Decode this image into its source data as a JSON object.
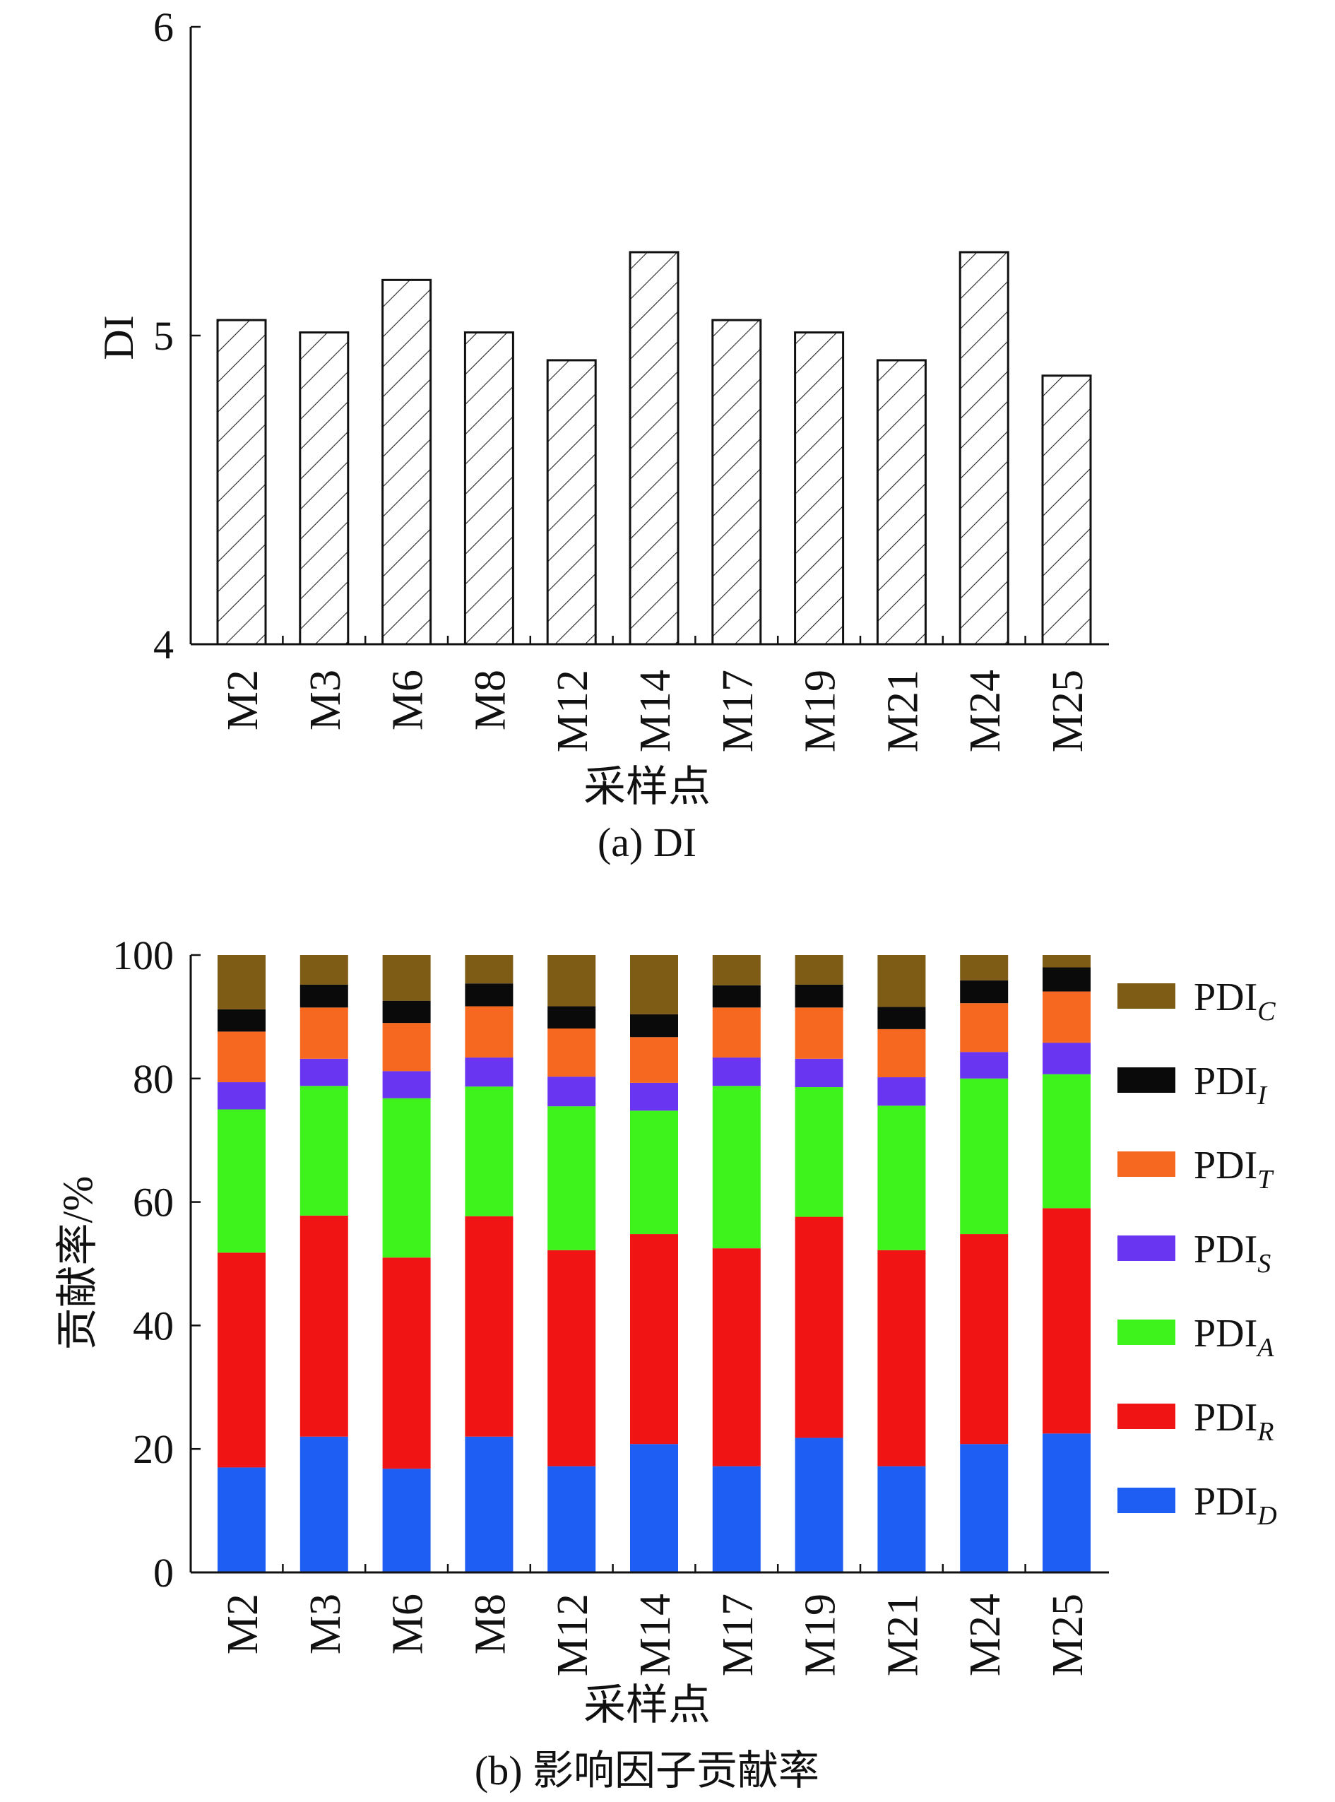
{
  "chart_data": [
    {
      "type": "bar",
      "caption": "(a) DI",
      "xlabel": "采样点",
      "ylabel": "DI",
      "ylim": [
        4,
        6
      ],
      "yticks": [
        4,
        5,
        6
      ],
      "categories": [
        "M2",
        "M3",
        "M6",
        "M8",
        "M12",
        "M14",
        "M17",
        "M19",
        "M21",
        "M24",
        "M25"
      ],
      "values": [
        5.05,
        5.01,
        5.18,
        5.01,
        4.92,
        5.27,
        5.05,
        5.01,
        4.92,
        5.27,
        4.87
      ],
      "fill": "diagonal-hatch",
      "grid": false
    },
    {
      "type": "bar",
      "stacked": true,
      "caption": "(b) 影响因子贡献率",
      "xlabel": "采样点",
      "ylabel": "贡献率/%",
      "ylim": [
        0,
        100
      ],
      "yticks": [
        0,
        20,
        40,
        60,
        80,
        100
      ],
      "categories": [
        "M2",
        "M3",
        "M6",
        "M8",
        "M12",
        "M14",
        "M17",
        "M19",
        "M21",
        "M24",
        "M25"
      ],
      "legend_position": "right",
      "grid": false,
      "series": [
        {
          "name": "PDI",
          "sub": "D",
          "color": "#1f5ef2",
          "values": [
            17,
            22,
            16.8,
            22,
            17.2,
            20.8,
            17.2,
            21.8,
            17.2,
            20.8,
            22.5
          ]
        },
        {
          "name": "PDI",
          "sub": "R",
          "color": "#f01414",
          "values": [
            34.8,
            35.8,
            34.2,
            35.7,
            35,
            34,
            35.3,
            35.8,
            35,
            34,
            36.5
          ]
        },
        {
          "name": "PDI",
          "sub": "A",
          "color": "#3ef21c",
          "values": [
            23.2,
            21,
            25.8,
            21,
            23.3,
            20,
            26.3,
            21,
            23.4,
            25.2,
            21.7
          ]
        },
        {
          "name": "PDI",
          "sub": "S",
          "color": "#6a35f0",
          "values": [
            4.4,
            4.4,
            4.4,
            4.7,
            4.8,
            4.5,
            4.6,
            4.6,
            4.6,
            4.3,
            5.1
          ]
        },
        {
          "name": "PDI",
          "sub": "T",
          "color": "#f66820",
          "values": [
            8.2,
            8.3,
            7.8,
            8.3,
            7.8,
            7.4,
            8.1,
            8.3,
            7.8,
            7.9,
            8.3
          ]
        },
        {
          "name": "PDI",
          "sub": "I",
          "color": "#0a0a0a",
          "values": [
            3.6,
            3.7,
            3.6,
            3.7,
            3.6,
            3.7,
            3.6,
            3.7,
            3.6,
            3.7,
            3.9
          ]
        },
        {
          "name": "PDI",
          "sub": "C",
          "color": "#7f5c16",
          "values": [
            8.8,
            4.8,
            7.4,
            4.6,
            8.3,
            9.6,
            4.9,
            4.8,
            8.4,
            4.1,
            2
          ]
        }
      ]
    }
  ]
}
